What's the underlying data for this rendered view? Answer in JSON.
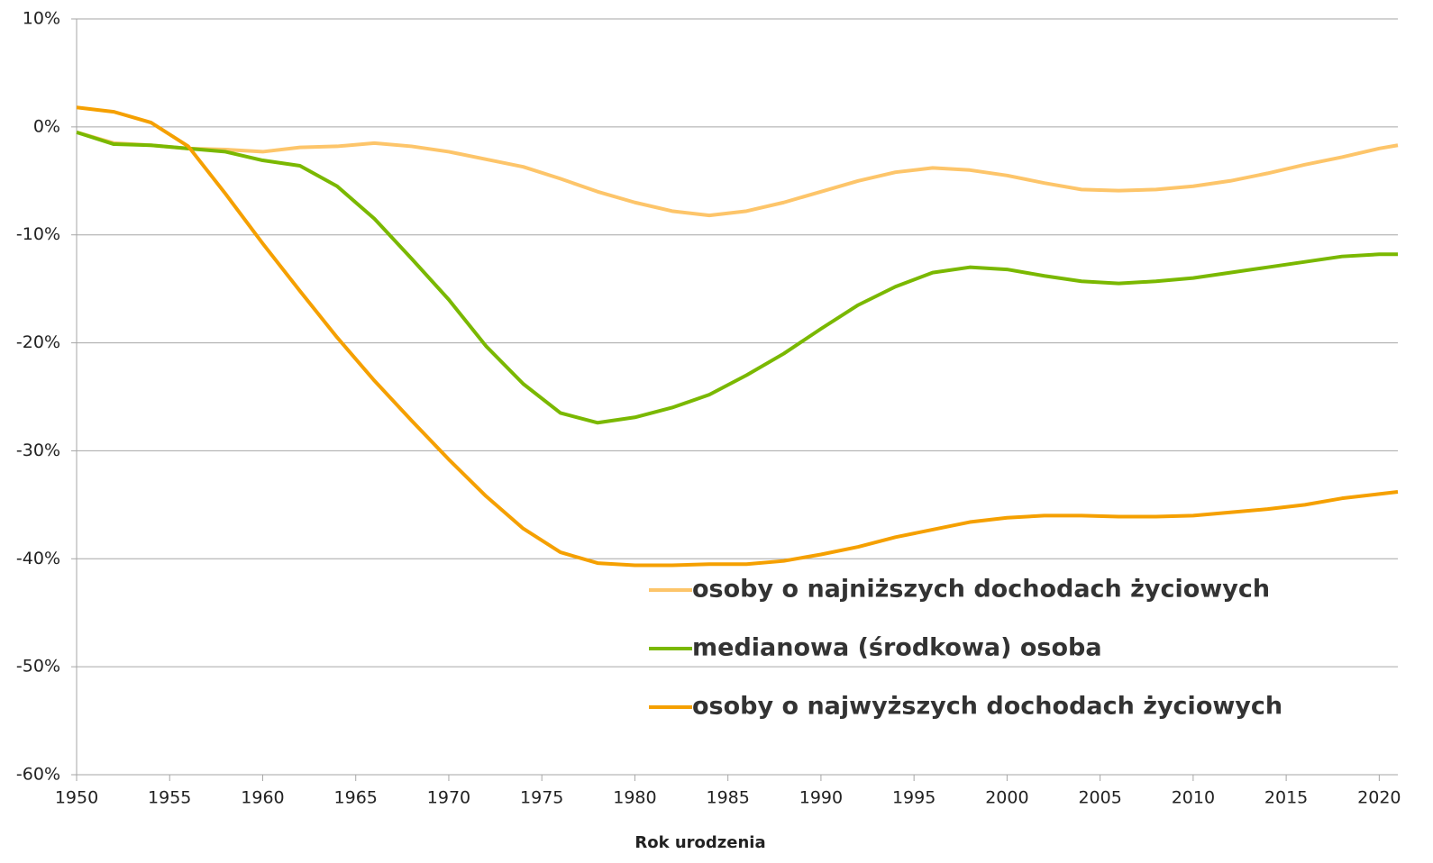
{
  "chart_data": {
    "type": "line",
    "x_label": "Rok urodzenia",
    "x": [
      1950,
      1952,
      1954,
      1956,
      1958,
      1960,
      1962,
      1964,
      1966,
      1968,
      1970,
      1972,
      1974,
      1976,
      1978,
      1980,
      1982,
      1984,
      1986,
      1988,
      1990,
      1992,
      1994,
      1996,
      1998,
      2000,
      2002,
      2004,
      2006,
      2008,
      2010,
      2012,
      2014,
      2016,
      2018,
      2020,
      2021
    ],
    "series": [
      {
        "name": "osoby o najniższych dochodach życiowych",
        "color": "#fdc56a",
        "values": [
          -0.5,
          -1.5,
          -1.7,
          -2.0,
          -2.1,
          -2.3,
          -1.9,
          -1.8,
          -1.5,
          -1.8,
          -2.3,
          -3.0,
          -3.7,
          -4.8,
          -6.0,
          -7.0,
          -7.8,
          -8.2,
          -7.8,
          -7.0,
          -6.0,
          -5.0,
          -4.2,
          -3.8,
          -4.0,
          -4.5,
          -5.2,
          -5.8,
          -5.9,
          -5.8,
          -5.5,
          -5.0,
          -4.3,
          -3.5,
          -2.8,
          -2.0,
          -1.7
        ]
      },
      {
        "name": "medianowa (środkowa) osoba",
        "color": "#7ab800",
        "values": [
          -0.5,
          -1.6,
          -1.7,
          -2.0,
          -2.3,
          -3.1,
          -3.6,
          -5.5,
          -8.5,
          -12.2,
          -16.0,
          -20.3,
          -23.8,
          -26.5,
          -27.4,
          -26.9,
          -26.0,
          -24.8,
          -23.0,
          -21.0,
          -18.7,
          -16.5,
          -14.8,
          -13.5,
          -13.0,
          -13.2,
          -13.8,
          -14.3,
          -14.5,
          -14.3,
          -14.0,
          -13.5,
          -13.0,
          -12.5,
          -12.0,
          -11.8,
          -11.8
        ]
      },
      {
        "name": "osoby o najwyższych dochodach życiowych",
        "color": "#f5a000",
        "values": [
          1.8,
          1.4,
          0.4,
          -1.8,
          -6.2,
          -10.8,
          -15.2,
          -19.5,
          -23.5,
          -27.2,
          -30.8,
          -34.2,
          -37.2,
          -39.4,
          -40.4,
          -40.6,
          -40.6,
          -40.5,
          -40.5,
          -40.2,
          -39.6,
          -38.9,
          -38.0,
          -37.3,
          -36.6,
          -36.2,
          -36.0,
          -36.0,
          -36.1,
          -36.1,
          -36.0,
          -35.7,
          -35.4,
          -35.0,
          -34.4,
          -34.0,
          -33.8
        ]
      }
    ],
    "xlim": [
      1950,
      2021
    ],
    "xticks": [
      1950,
      1955,
      1960,
      1965,
      1970,
      1975,
      1980,
      1985,
      1990,
      1995,
      2000,
      2005,
      2010,
      2015,
      2020
    ],
    "ylim": [
      -60,
      10
    ],
    "yticks": [
      {
        "value": -60,
        "label": "-60%"
      },
      {
        "value": -50,
        "label": "-50%"
      },
      {
        "value": -40,
        "label": "-40%"
      },
      {
        "value": -30,
        "label": "-30%"
      },
      {
        "value": -20,
        "label": "-20%"
      },
      {
        "value": -10,
        "label": "-10%"
      },
      {
        "value": 0,
        "label": "0%"
      },
      {
        "value": 10,
        "label": "10%"
      }
    ],
    "grid": true,
    "legend": "lower center"
  }
}
